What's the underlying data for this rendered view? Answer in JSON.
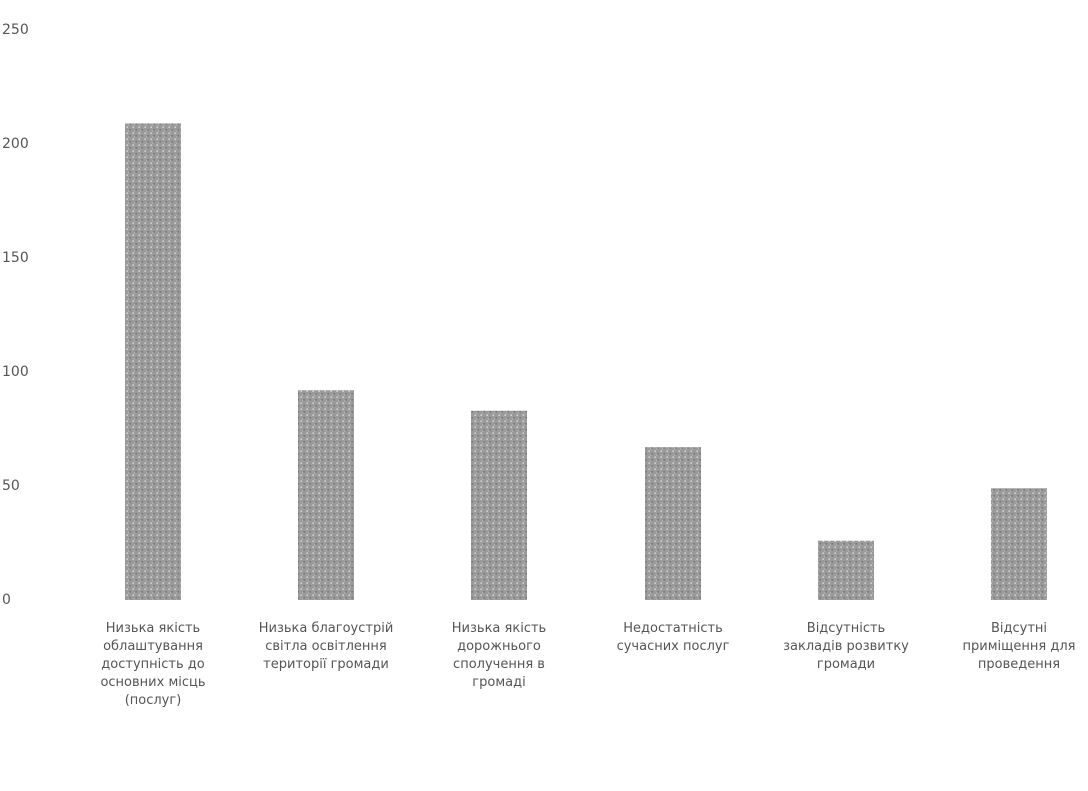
{
  "chart_data": {
    "type": "bar",
    "title": "",
    "xlabel": "",
    "ylabel": "",
    "ylim": [
      0,
      250
    ],
    "yticks": [
      0,
      50,
      100,
      150,
      200,
      250
    ],
    "grid": false,
    "legend": "none",
    "categories": [
      "Низька якість облаштування доступність до основних місць (послуг)",
      "Низька благоустрій світла освітлення території громади",
      "Низька якість дорожнього сполучення в громаді",
      "Недостатність сучасних послуг",
      "Відсутність закладів розвитку громади",
      "Відсутні приміщення для проведення"
    ],
    "values": [
      209,
      92,
      83,
      67,
      26,
      49
    ],
    "colors": {
      "bar_fill": "#9a9a9a",
      "bar_dots": "#6e6e6e",
      "bar_light": "#d2d2d2",
      "text": "#555555"
    }
  }
}
